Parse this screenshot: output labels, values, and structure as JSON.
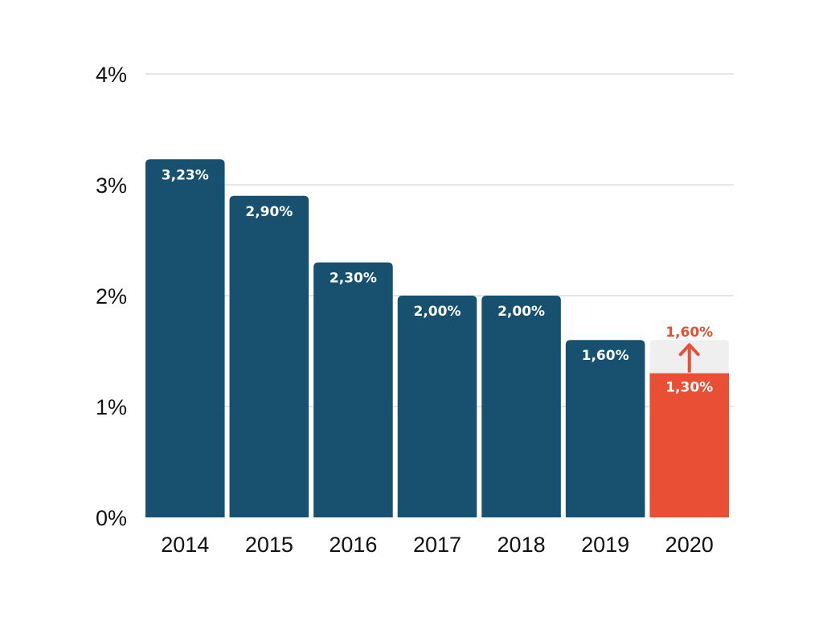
{
  "chart_data": {
    "type": "bar",
    "categories": [
      "2014",
      "2015",
      "2016",
      "2017",
      "2018",
      "2019",
      "2020"
    ],
    "values": [
      3.23,
      2.9,
      2.3,
      2.0,
      2.0,
      1.6,
      1.3
    ],
    "value_labels": [
      "3,23%",
      "2,90%",
      "2,30%",
      "2,00%",
      "2,00%",
      "1,60%",
      "1,30%"
    ],
    "target": {
      "category": "2020",
      "value": 1.6,
      "label": "1,60%"
    },
    "ylim": [
      0,
      4
    ],
    "yticks": [
      0,
      1,
      2,
      3,
      4
    ],
    "ytick_labels": [
      "0%",
      "1%",
      "2%",
      "3%",
      "4%"
    ],
    "grid": true,
    "colors": {
      "bar": "#17516f",
      "highlight": "#e84f35",
      "target_fill": "#efefef",
      "grid": "#dddddd",
      "label_on_bar": "#ffffff",
      "target_label": "#e84f35"
    }
  }
}
